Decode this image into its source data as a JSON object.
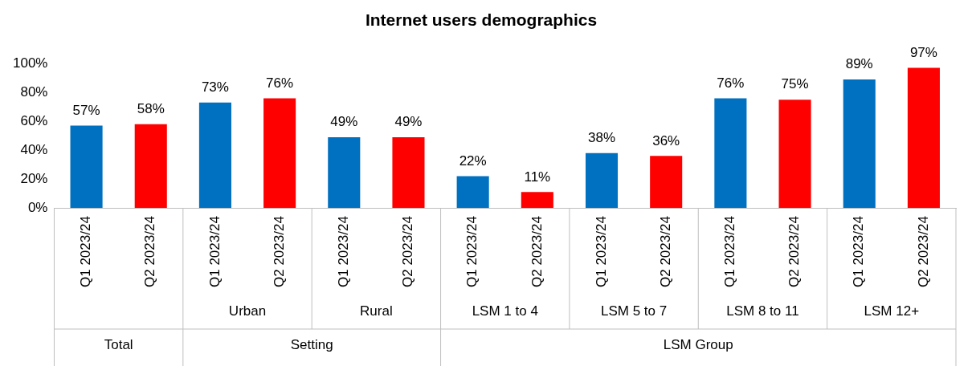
{
  "chart_data": {
    "type": "bar",
    "title": "Internet users demographics",
    "categories": [
      "Q1 2023/24",
      "Q2 2023/24",
      "Q1 2023/24",
      "Q2 2023/24",
      "Q1 2023/24",
      "Q2 2023/24",
      "Q1 2023/24",
      "Q2 2023/24",
      "Q1 2023/24",
      "Q2 2023/24",
      "Q1 2023/24",
      "Q2 2023/24",
      "Q1 2023/24",
      "Q2 2023/24"
    ],
    "values": [
      57,
      58,
      73,
      76,
      49,
      49,
      22,
      11,
      38,
      36,
      76,
      75,
      89,
      97
    ],
    "colors": [
      "#0070c0",
      "#ff0000",
      "#0070c0",
      "#ff0000",
      "#0070c0",
      "#ff0000",
      "#0070c0",
      "#ff0000",
      "#0070c0",
      "#ff0000",
      "#0070c0",
      "#ff0000",
      "#0070c0",
      "#ff0000"
    ],
    "value_labels": [
      "57%",
      "58%",
      "73%",
      "76%",
      "49%",
      "49%",
      "22%",
      "11%",
      "38%",
      "36%",
      "76%",
      "75%",
      "89%",
      "97%"
    ],
    "ylim": [
      0,
      100
    ],
    "yticks": [
      {
        "value": 0,
        "label": "0%"
      },
      {
        "value": 20,
        "label": "20%"
      },
      {
        "value": 40,
        "label": "40%"
      },
      {
        "value": 60,
        "label": "60%"
      },
      {
        "value": 80,
        "label": "80%"
      },
      {
        "value": 100,
        "label": "100%"
      }
    ],
    "annotations": [
      "Urban",
      "Rural",
      "LSM 1 to 4",
      "LSM 5 to 7",
      "LSM 8 to 11",
      "LSM 12+",
      "Total",
      "Setting",
      "LSM Group"
    ],
    "grid": false,
    "legend": false
  }
}
